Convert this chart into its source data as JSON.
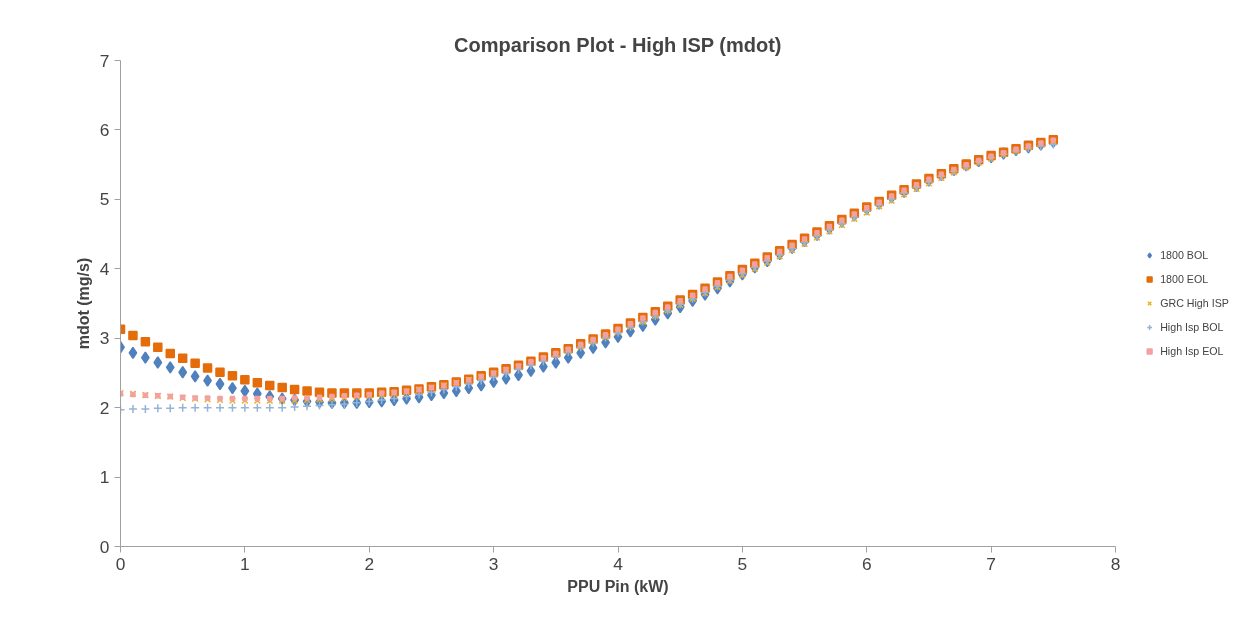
{
  "chart_data": {
    "type": "scatter",
    "title": "Comparison Plot - High ISP (mdot)",
    "xlabel": "PPU Pin (kW)",
    "ylabel": "mdot (mg/s)",
    "x": [
      0,
      0.1,
      0.2,
      0.3,
      0.4,
      0.5,
      0.6,
      0.7,
      0.8,
      0.9,
      1.0,
      1.1,
      1.2,
      1.3,
      1.4,
      1.5,
      1.6,
      1.7,
      1.8,
      1.9,
      2.0,
      2.1,
      2.2,
      2.3,
      2.4,
      2.5,
      2.6,
      2.7,
      2.8,
      2.9,
      3.0,
      3.1,
      3.2,
      3.3,
      3.4,
      3.5,
      3.6,
      3.7,
      3.8,
      3.9,
      4.0,
      4.1,
      4.2,
      4.3,
      4.4,
      4.5,
      4.6,
      4.7,
      4.8,
      4.9,
      5.0,
      5.1,
      5.2,
      5.3,
      5.4,
      5.5,
      5.6,
      5.7,
      5.8,
      5.9,
      6.0,
      6.1,
      6.2,
      6.3,
      6.4,
      6.5,
      6.6,
      6.7,
      6.8,
      6.9,
      7.0,
      7.1,
      7.2,
      7.3,
      7.4,
      7.5
    ],
    "xlim": [
      0,
      8
    ],
    "xticks": [
      0,
      1,
      2,
      3,
      4,
      5,
      6,
      7,
      8
    ],
    "ylim": [
      0,
      7
    ],
    "yticks": [
      0,
      1,
      2,
      3,
      4,
      5,
      6,
      7
    ],
    "grid": false,
    "legend": "right",
    "series": [
      {
        "name": "1800 BOL",
        "color": "#4f81bd",
        "marker": "diamond",
        "values": [
          2.87,
          2.79,
          2.72,
          2.65,
          2.58,
          2.51,
          2.45,
          2.39,
          2.34,
          2.28,
          2.24,
          2.2,
          2.16,
          2.13,
          2.11,
          2.09,
          2.08,
          2.07,
          2.07,
          2.07,
          2.08,
          2.09,
          2.11,
          2.13,
          2.15,
          2.18,
          2.21,
          2.24,
          2.28,
          2.32,
          2.37,
          2.42,
          2.47,
          2.53,
          2.59,
          2.65,
          2.72,
          2.79,
          2.86,
          2.94,
          3.02,
          3.1,
          3.18,
          3.27,
          3.36,
          3.45,
          3.54,
          3.63,
          3.72,
          3.82,
          3.92,
          4.02,
          4.11,
          4.21,
          4.3,
          4.4,
          4.49,
          4.58,
          4.68,
          4.77,
          4.86,
          4.94,
          5.03,
          5.11,
          5.19,
          5.27,
          5.35,
          5.42,
          5.49,
          5.55,
          5.61,
          5.66,
          5.71,
          5.75,
          5.79,
          5.83
        ]
      },
      {
        "name": "1800 EOL",
        "color": "#e46c0a",
        "marker": "square",
        "values": [
          3.13,
          3.04,
          2.95,
          2.87,
          2.78,
          2.71,
          2.64,
          2.57,
          2.51,
          2.46,
          2.4,
          2.36,
          2.32,
          2.29,
          2.26,
          2.24,
          2.22,
          2.21,
          2.21,
          2.21,
          2.21,
          2.22,
          2.23,
          2.25,
          2.27,
          2.3,
          2.33,
          2.37,
          2.41,
          2.46,
          2.51,
          2.56,
          2.61,
          2.67,
          2.73,
          2.79,
          2.85,
          2.92,
          2.99,
          3.06,
          3.14,
          3.22,
          3.3,
          3.38,
          3.46,
          3.55,
          3.63,
          3.72,
          3.81,
          3.9,
          3.99,
          4.08,
          4.17,
          4.26,
          4.35,
          4.44,
          4.53,
          4.62,
          4.71,
          4.8,
          4.89,
          4.97,
          5.06,
          5.14,
          5.22,
          5.3,
          5.37,
          5.44,
          5.51,
          5.57,
          5.63,
          5.68,
          5.73,
          5.78,
          5.82,
          5.86
        ]
      },
      {
        "name": "GRC High ISP",
        "color": "#f0b020",
        "marker": "x",
        "values": [
          2.21,
          2.2,
          2.18,
          2.17,
          2.16,
          2.14,
          2.13,
          2.12,
          2.11,
          2.1,
          2.1,
          2.1,
          2.1,
          2.1,
          2.1,
          2.11,
          2.12,
          2.13,
          2.14,
          2.16,
          2.17,
          2.19,
          2.21,
          2.23,
          2.26,
          2.29,
          2.32,
          2.36,
          2.4,
          2.44,
          2.49,
          2.54,
          2.59,
          2.64,
          2.7,
          2.76,
          2.82,
          2.88,
          2.95,
          3.02,
          3.09,
          3.17,
          3.24,
          3.32,
          3.4,
          3.48,
          3.57,
          3.65,
          3.74,
          3.83,
          3.91,
          4.0,
          4.09,
          4.18,
          4.27,
          4.36,
          4.45,
          4.54,
          4.63,
          4.72,
          4.81,
          4.9,
          4.98,
          5.07,
          5.15,
          5.23,
          5.31,
          5.39,
          5.46,
          5.53,
          5.59,
          5.65,
          5.7,
          5.75,
          5.79,
          5.83
        ]
      },
      {
        "name": "High Isp BOL",
        "color": "#95b3d7",
        "marker": "cross",
        "values": [
          1.97,
          1.98,
          1.98,
          1.99,
          1.99,
          2.0,
          2.0,
          2.0,
          2.0,
          2.0,
          2.0,
          2.0,
          2.0,
          2.0,
          2.01,
          2.02,
          2.03,
          2.04,
          2.05,
          2.07,
          2.09,
          2.11,
          2.13,
          2.16,
          2.19,
          2.22,
          2.26,
          2.3,
          2.34,
          2.39,
          2.44,
          2.49,
          2.55,
          2.61,
          2.67,
          2.74,
          2.8,
          2.87,
          2.94,
          3.01,
          3.08,
          3.16,
          3.24,
          3.32,
          3.4,
          3.49,
          3.57,
          3.66,
          3.75,
          3.84,
          3.93,
          4.02,
          4.11,
          4.2,
          4.29,
          4.38,
          4.47,
          4.56,
          4.65,
          4.74,
          4.83,
          4.92,
          5.0,
          5.09,
          5.17,
          5.25,
          5.33,
          5.4,
          5.47,
          5.54,
          5.6,
          5.65,
          5.7,
          5.74,
          5.77,
          5.79
        ]
      },
      {
        "name": "High Isp EOL",
        "color": "#f2a0a0",
        "marker": "square",
        "values": [
          2.2,
          2.19,
          2.18,
          2.17,
          2.16,
          2.15,
          2.14,
          2.14,
          2.13,
          2.13,
          2.13,
          2.13,
          2.13,
          2.13,
          2.14,
          2.14,
          2.15,
          2.16,
          2.17,
          2.18,
          2.19,
          2.21,
          2.22,
          2.24,
          2.26,
          2.29,
          2.32,
          2.36,
          2.4,
          2.45,
          2.5,
          2.55,
          2.6,
          2.66,
          2.72,
          2.78,
          2.84,
          2.91,
          2.98,
          3.05,
          3.13,
          3.21,
          3.29,
          3.37,
          3.45,
          3.54,
          3.62,
          3.71,
          3.8,
          3.89,
          3.98,
          4.07,
          4.16,
          4.25,
          4.34,
          4.43,
          4.52,
          4.61,
          4.7,
          4.79,
          4.88,
          4.96,
          5.05,
          5.13,
          5.21,
          5.29,
          5.36,
          5.43,
          5.5,
          5.56,
          5.62,
          5.67,
          5.72,
          5.77,
          5.81,
          5.85
        ]
      }
    ]
  }
}
